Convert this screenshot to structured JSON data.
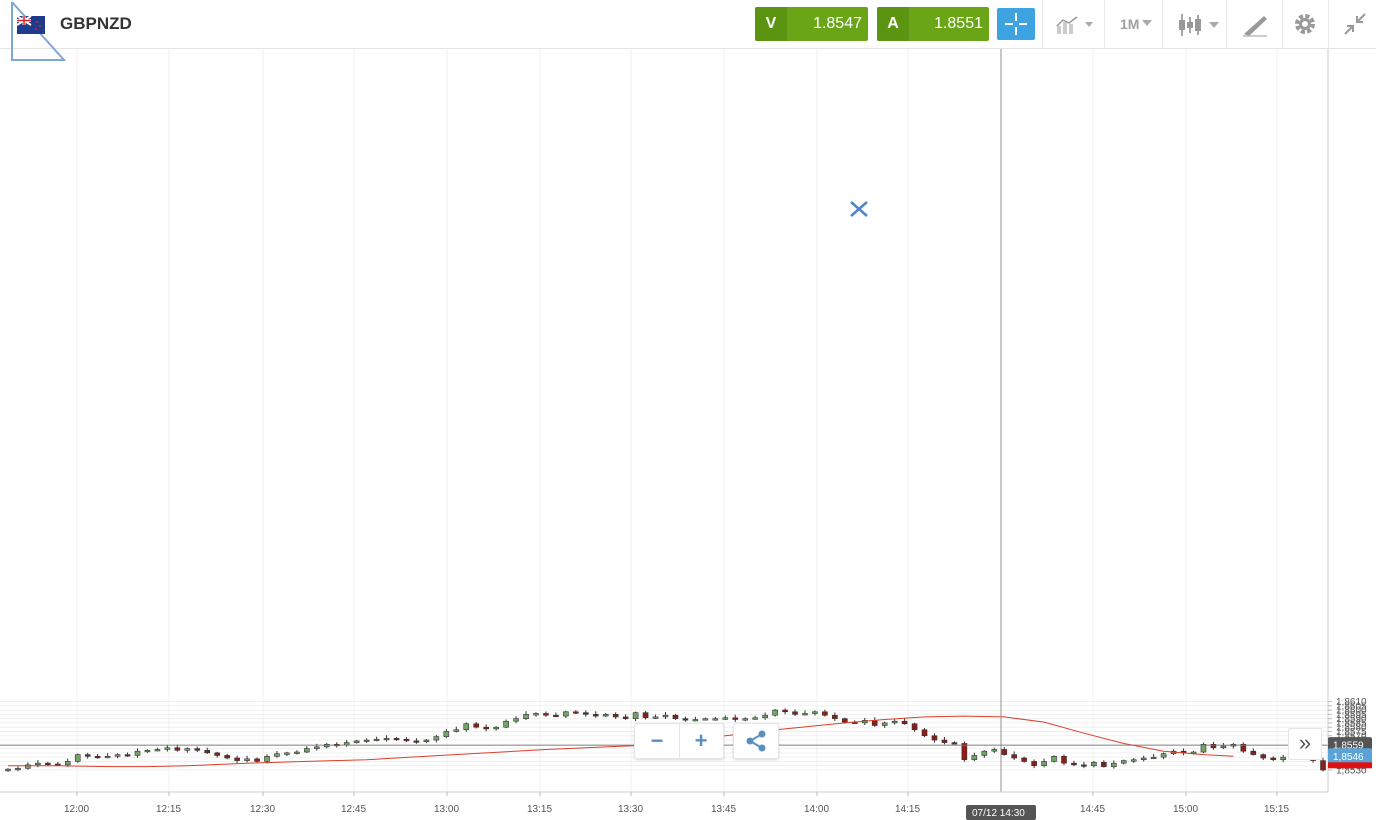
{
  "header": {
    "symbol": "GBPNZD",
    "sell": {
      "label": "V",
      "price": "1.8547"
    },
    "buy": {
      "label": "A",
      "price": "1.8551"
    },
    "timeframe": "1M",
    "icons": [
      "crosshair-icon",
      "chart-type-icon",
      "candlestick-icon",
      "drawing-tools-icon",
      "gear-icon",
      "collapse-icon"
    ]
  },
  "colors": {
    "up": "#70a668",
    "down": "#8b1e1a",
    "ma": "#d9402c",
    "trade_green": "#6aa517",
    "accent_blue": "#3da3e1",
    "current_price": "#5ba3d6",
    "crosshair_label": "#555555"
  },
  "chart_data": {
    "type": "candlestick",
    "y_ticks": [
      "1,8530",
      "1,8535",
      "1,8540",
      "1,8545",
      "1,8550",
      "1,8555",
      "1,8560",
      "1,8565",
      "1,8570",
      "1,8575",
      "1,8580",
      "1,8585",
      "1,8590",
      "1,8595",
      "1,8600",
      "1,8605",
      "1,8610"
    ],
    "x_ticks": [
      "12:00",
      "12:15",
      "12:30",
      "12:45",
      "13:00",
      "13:15",
      "13:30",
      "13:45",
      "14:00",
      "14:15",
      "14:45",
      "15:00",
      "15:15"
    ],
    "crosshair": {
      "time_label": "07/12 14:30",
      "price_label": "1,8559",
      "price": 1.8559
    },
    "current_price": {
      "label": "1,8546",
      "price": 1.8546
    },
    "candles_approx": [
      1.8531,
      1.8532,
      1.8536,
      1.8538,
      1.8537,
      1.8536,
      1.854,
      1.8548,
      1.8546,
      1.8545,
      1.8546,
      1.8548,
      1.8547,
      1.8552,
      1.8553,
      1.8554,
      1.8556,
      1.8553,
      1.8555,
      1.8553,
      1.855,
      1.8547,
      1.8544,
      1.8541,
      1.8543,
      1.854,
      1.8546,
      1.8549,
      1.855,
      1.8551,
      1.8555,
      1.8557,
      1.856,
      1.8559,
      1.8562,
      1.8564,
      1.8565,
      1.8566,
      1.8567,
      1.8566,
      1.8564,
      1.8563,
      1.8565,
      1.8569,
      1.8575,
      1.8577,
      1.8584,
      1.858,
      1.8578,
      1.858,
      1.8587,
      1.859,
      1.8595,
      1.8596,
      1.8594,
      1.8593,
      1.8598,
      1.8597,
      1.8595,
      1.8593,
      1.8595,
      1.8592,
      1.859,
      1.8597,
      1.8591,
      1.8592,
      1.8594,
      1.859,
      1.8589,
      1.8589,
      1.859,
      1.859,
      1.8591,
      1.8589,
      1.859,
      1.8591,
      1.8594,
      1.86,
      1.8598,
      1.8595,
      1.8596,
      1.8598,
      1.8594,
      1.859,
      1.8586,
      1.8585,
      1.8588,
      1.8582,
      1.8585,
      1.8587,
      1.8584,
      1.8577,
      1.857,
      1.8565,
      1.8562,
      1.8561,
      1.8542,
      1.8547,
      1.8552,
      1.8554,
      1.8548,
      1.8544,
      1.854,
      1.8535,
      1.854,
      1.8546,
      1.8538,
      1.8536,
      1.8535,
      1.8539,
      1.8534,
      1.8538,
      1.8541,
      1.8542,
      1.8544,
      1.8545,
      1.8549,
      1.8552,
      1.855,
      1.8551,
      1.856,
      1.8556,
      1.8558,
      1.856,
      1.8552,
      1.8548,
      1.8544,
      1.8542,
      1.8545,
      1.8544,
      1.8543,
      1.8541,
      1.853
    ],
    "ma_line": [
      [
        0,
        1.8535
      ],
      [
        5,
        1.8535
      ],
      [
        10,
        1.8534
      ],
      [
        14,
        1.8534
      ],
      [
        18,
        1.8535
      ],
      [
        24,
        1.8538
      ],
      [
        30,
        1.854
      ],
      [
        36,
        1.8542
      ],
      [
        42,
        1.8546
      ],
      [
        48,
        1.855
      ],
      [
        54,
        1.8554
      ],
      [
        60,
        1.8557
      ],
      [
        66,
        1.856
      ],
      [
        72,
        1.857
      ],
      [
        78,
        1.8578
      ],
      [
        84,
        1.8585
      ],
      [
        88,
        1.8589
      ],
      [
        92,
        1.8592
      ],
      [
        96,
        1.8593
      ],
      [
        100,
        1.8592
      ],
      [
        104,
        1.8586
      ],
      [
        108,
        1.8573
      ],
      [
        112,
        1.8561
      ],
      [
        116,
        1.8552
      ],
      [
        120,
        1.8548
      ],
      [
        123,
        1.8546
      ]
    ]
  },
  "controls": {
    "zoom_out": "−",
    "zoom_in": "+",
    "expand": "»"
  }
}
